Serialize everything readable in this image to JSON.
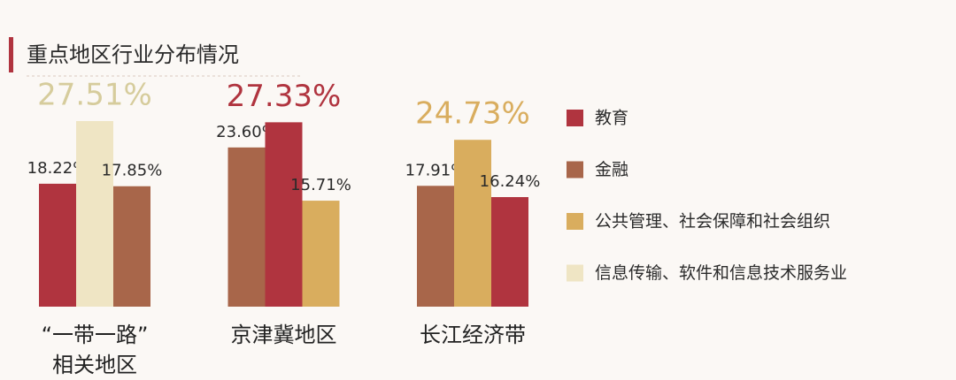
{
  "chart_data": {
    "type": "bar",
    "title": "重点地区行业分布情况",
    "categories": [
      "“一带一路”\n相关地区",
      "京津冀地区",
      "长江经济带"
    ],
    "groups": [
      {
        "bars": [
          {
            "value": 18.22,
            "value_label": "18.22%",
            "color": "#b0343f"
          },
          {
            "value": 27.51,
            "value_label": "27.51%",
            "color": "#efe5c4",
            "label_color": "#d6cc9c"
          },
          {
            "value": 17.85,
            "value_label": "17.85%",
            "color": "#a8664a"
          }
        ]
      },
      {
        "bars": [
          {
            "value": 23.6,
            "value_label": "23.60%",
            "color": "#a8664a"
          },
          {
            "value": 27.33,
            "value_label": "27.33%",
            "color": "#b0343f",
            "label_color": "#b0343f"
          },
          {
            "value": 15.71,
            "value_label": "15.71%",
            "color": "#d9ad5e"
          }
        ]
      },
      {
        "bars": [
          {
            "value": 17.91,
            "value_label": "17.91%",
            "color": "#a8664a"
          },
          {
            "value": 24.73,
            "value_label": "24.73%",
            "color": "#d9ad5e",
            "label_color": "#d9ad5e"
          },
          {
            "value": 16.24,
            "value_label": "16.24%",
            "color": "#b0343f"
          }
        ]
      }
    ],
    "legend": [
      {
        "name": "教育",
        "color": "#b0343f"
      },
      {
        "name": "金融",
        "color": "#a8664a"
      },
      {
        "name": "公共管理、社会保障和社会组织",
        "color": "#d9ad5e"
      },
      {
        "name": "信息传输、软件和信息技术服务业",
        "color": "#efe5c4"
      }
    ]
  }
}
